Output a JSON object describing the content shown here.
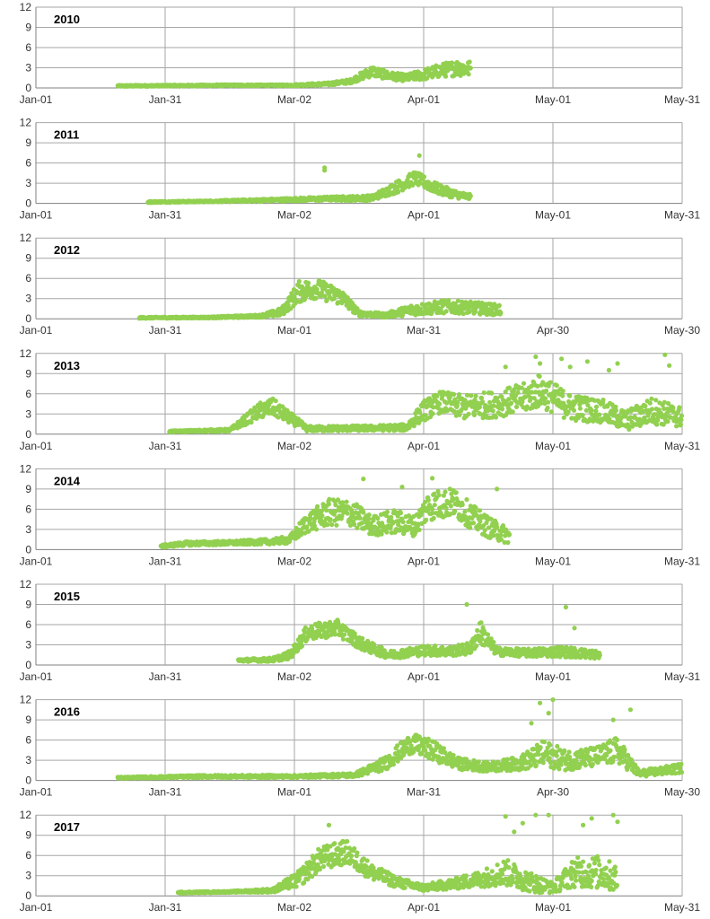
{
  "colors": {
    "series": "#92d050",
    "grid": "#a6a6a6",
    "axis": "#808080",
    "text": "#333333"
  },
  "chart_data": [
    {
      "type": "scatter",
      "title": "2010",
      "ylim": [
        0,
        12
      ],
      "yticks": [
        "0",
        "3",
        "6",
        "9",
        "12"
      ],
      "xlim": [
        "2010-01-01",
        "2010-05-31"
      ],
      "xticks": [
        "Jan-01",
        "Jan-31",
        "Mar-02",
        "Apr-01",
        "May-01",
        "May-31"
      ],
      "series": [
        {
          "x": [
            "2010-01-20",
            "2010-02-01",
            "2010-02-15",
            "2010-03-01",
            "2010-03-10",
            "2010-03-15",
            "2010-03-20",
            "2010-03-24",
            "2010-03-28",
            "2010-04-01",
            "2010-04-05",
            "2010-04-09",
            "2010-04-12"
          ],
          "y": [
            0.3,
            0.35,
            0.4,
            0.4,
            0.6,
            1.0,
            2.5,
            1.8,
            1.5,
            2.0,
            2.6,
            3.0,
            2.8
          ],
          "spread": [
            0.1,
            0.1,
            0.1,
            0.1,
            0.2,
            0.3,
            0.8,
            0.6,
            0.5,
            0.8,
            1.0,
            1.2,
            1.2
          ]
        }
      ]
    },
    {
      "type": "scatter",
      "title": "2011",
      "ylim": [
        0,
        12
      ],
      "yticks": [
        "0",
        "3",
        "6",
        "9",
        "12"
      ],
      "xlim": [
        "2011-01-01",
        "2011-05-31"
      ],
      "xticks": [
        "Jan-01",
        "Jan-31",
        "Mar-02",
        "Apr-01",
        "May-01",
        "May-31"
      ],
      "series": [
        {
          "x": [
            "2011-01-27",
            "2011-02-10",
            "2011-02-25",
            "2011-03-10",
            "2011-03-20",
            "2011-03-26",
            "2011-03-30",
            "2011-04-04",
            "2011-04-08",
            "2011-04-12"
          ],
          "y": [
            0.2,
            0.3,
            0.5,
            0.7,
            0.8,
            2.5,
            3.8,
            2.2,
            1.4,
            0.9
          ],
          "spread": [
            0.1,
            0.1,
            0.2,
            0.3,
            0.4,
            0.9,
            1.0,
            0.8,
            0.6,
            0.4
          ]
        }
      ],
      "outliers": {
        "x": [
          "2011-03-09",
          "2011-03-09",
          "2011-03-31"
        ],
        "y": [
          5.3,
          4.9,
          7.1
        ]
      }
    },
    {
      "type": "scatter",
      "title": "2012",
      "ylim": [
        0,
        12
      ],
      "yticks": [
        "0",
        "3",
        "6",
        "9",
        "12"
      ],
      "xlim": [
        "2012-01-01",
        "2012-05-30"
      ],
      "xticks": [
        "Jan-01",
        "Jan-31",
        "Mar-01",
        "Mar-31",
        "Apr-30",
        "May-30"
      ],
      "series": [
        {
          "x": [
            "2012-01-25",
            "2012-02-10",
            "2012-02-22",
            "2012-02-27",
            "2012-03-02",
            "2012-03-06",
            "2012-03-12",
            "2012-03-16",
            "2012-03-22",
            "2012-03-28",
            "2012-04-05",
            "2012-04-12",
            "2012-04-18"
          ],
          "y": [
            0.15,
            0.2,
            0.4,
            1.0,
            4.0,
            4.5,
            3.2,
            0.8,
            0.5,
            1.3,
            1.8,
            1.6,
            1.3
          ],
          "spread": [
            0.1,
            0.1,
            0.2,
            0.6,
            1.6,
            1.5,
            1.2,
            0.4,
            0.3,
            0.8,
            1.0,
            0.9,
            0.8
          ]
        }
      ]
    },
    {
      "type": "scatter",
      "title": "2013",
      "ylim": [
        0,
        12
      ],
      "yticks": [
        "0",
        "3",
        "6",
        "9",
        "12"
      ],
      "xlim": [
        "2013-01-01",
        "2013-05-31"
      ],
      "xticks": [
        "Jan-01",
        "Jan-31",
        "Mar-02",
        "Apr-01",
        "May-01",
        "May-31"
      ],
      "series": [
        {
          "x": [
            "2013-02-01",
            "2013-02-15",
            "2013-02-22",
            "2013-02-25",
            "2013-03-05",
            "2013-03-20",
            "2013-03-28",
            "2013-04-01",
            "2013-04-05",
            "2013-04-10",
            "2013-04-18",
            "2013-04-25",
            "2013-04-28",
            "2013-05-05",
            "2013-05-12",
            "2013-05-18",
            "2013-05-24",
            "2013-05-31"
          ],
          "y": [
            0.4,
            0.6,
            3.5,
            4.0,
            0.8,
            0.9,
            1.0,
            3.5,
            4.8,
            4.0,
            4.5,
            5.5,
            6.5,
            4.0,
            3.5,
            2.0,
            3.5,
            2.5
          ],
          "spread": [
            0.1,
            0.2,
            1.2,
            1.3,
            0.4,
            0.4,
            0.5,
            1.5,
            1.6,
            1.8,
            2.0,
            2.2,
            2.5,
            2.0,
            1.8,
            1.5,
            2.0,
            1.5
          ]
        }
      ],
      "outliers": {
        "x": [
          "2013-04-27",
          "2013-04-28",
          "2013-05-03",
          "2013-05-05",
          "2013-05-09",
          "2013-05-16",
          "2013-05-27",
          "2013-05-28",
          "2013-04-20",
          "2013-05-14"
        ],
        "y": [
          11.5,
          10.5,
          11.2,
          10.0,
          10.8,
          10.5,
          11.8,
          10.2,
          10.0,
          9.5
        ]
      }
    },
    {
      "type": "scatter",
      "title": "2014",
      "ylim": [
        0,
        12
      ],
      "yticks": [
        "0",
        "3",
        "6",
        "9",
        "12"
      ],
      "xlim": [
        "2014-01-01",
        "2014-05-31"
      ],
      "xticks": [
        "Jan-01",
        "Jan-31",
        "Mar-02",
        "Apr-01",
        "May-01",
        "May-31"
      ],
      "series": [
        {
          "x": [
            "2014-01-30",
            "2014-02-05",
            "2014-02-15",
            "2014-02-25",
            "2014-03-01",
            "2014-03-05",
            "2014-03-10",
            "2014-03-15",
            "2014-03-20",
            "2014-03-25",
            "2014-03-30",
            "2014-04-02",
            "2014-04-08",
            "2014-04-13",
            "2014-04-17",
            "2014-04-21"
          ],
          "y": [
            0.5,
            0.9,
            1.0,
            1.2,
            1.5,
            4.0,
            5.5,
            5.5,
            3.5,
            4.2,
            3.5,
            6.5,
            7.0,
            4.5,
            3.0,
            2.0
          ],
          "spread": [
            0.2,
            0.3,
            0.3,
            0.4,
            0.6,
            1.5,
            2.0,
            2.0,
            1.5,
            1.8,
            1.5,
            2.2,
            2.2,
            1.8,
            1.5,
            1.2
          ]
        }
      ],
      "outliers": {
        "x": [
          "2014-03-18",
          "2014-04-03",
          "2014-04-18",
          "2014-03-27"
        ],
        "y": [
          10.5,
          10.6,
          9.0,
          9.3
        ]
      }
    },
    {
      "type": "scatter",
      "title": "2015",
      "ylim": [
        0,
        12
      ],
      "yticks": [
        "0",
        "3",
        "6",
        "9",
        "12"
      ],
      "xlim": [
        "2015-01-01",
        "2015-05-31"
      ],
      "xticks": [
        "Jan-01",
        "Jan-31",
        "Mar-02",
        "Apr-01",
        "May-01",
        "May-31"
      ],
      "series": [
        {
          "x": [
            "2015-02-17",
            "2015-02-25",
            "2015-03-01",
            "2015-03-05",
            "2015-03-12",
            "2015-03-18",
            "2015-03-24",
            "2015-03-30",
            "2015-04-02",
            "2015-04-07",
            "2015-04-12",
            "2015-04-14",
            "2015-04-18",
            "2015-04-25",
            "2015-05-03",
            "2015-05-12"
          ],
          "y": [
            0.7,
            0.8,
            1.5,
            4.8,
            5.5,
            3.0,
            1.5,
            2.0,
            2.2,
            2.0,
            2.5,
            5.0,
            2.0,
            1.8,
            2.0,
            1.5
          ],
          "spread": [
            0.2,
            0.3,
            0.6,
            1.2,
            1.2,
            0.9,
            0.6,
            0.7,
            0.8,
            0.7,
            0.9,
            1.8,
            0.6,
            0.6,
            0.8,
            0.6
          ]
        }
      ],
      "outliers": {
        "x": [
          "2015-04-11",
          "2015-05-04",
          "2015-05-06"
        ],
        "y": [
          9.0,
          8.6,
          5.5
        ]
      }
    },
    {
      "type": "scatter",
      "title": "2016",
      "ylim": [
        0,
        12
      ],
      "yticks": [
        "0",
        "3",
        "6",
        "9",
        "12"
      ],
      "xlim": [
        "2016-01-01",
        "2016-05-30"
      ],
      "xticks": [
        "Jan-01",
        "Jan-31",
        "Mar-01",
        "Mar-31",
        "Apr-30",
        "May-30"
      ],
      "series": [
        {
          "x": [
            "2016-01-20",
            "2016-02-10",
            "2016-03-01",
            "2016-03-15",
            "2016-03-22",
            "2016-03-28",
            "2016-04-02",
            "2016-04-08",
            "2016-04-15",
            "2016-04-22",
            "2016-04-28",
            "2016-05-03",
            "2016-05-10",
            "2016-05-15",
            "2016-05-20",
            "2016-05-30"
          ],
          "y": [
            0.4,
            0.6,
            0.6,
            0.8,
            2.5,
            5.5,
            4.5,
            2.5,
            2.0,
            2.5,
            4.0,
            3.0,
            3.5,
            4.5,
            1.0,
            1.8
          ],
          "spread": [
            0.1,
            0.2,
            0.2,
            0.3,
            1.0,
            1.5,
            1.5,
            0.9,
            0.7,
            1.0,
            2.0,
            1.5,
            1.5,
            2.0,
            0.5,
            0.7
          ]
        }
      ],
      "outliers": {
        "x": [
          "2016-04-27",
          "2016-04-29",
          "2016-04-30",
          "2016-05-14",
          "2016-05-18",
          "2016-04-25"
        ],
        "y": [
          11.5,
          10.0,
          12.0,
          9.0,
          10.5,
          8.5
        ]
      }
    },
    {
      "type": "scatter",
      "title": "2017",
      "ylim": [
        0,
        12
      ],
      "yticks": [
        "0",
        "3",
        "6",
        "9",
        "12"
      ],
      "xlim": [
        "2017-01-01",
        "2017-05-31"
      ],
      "xticks": [
        "Jan-01",
        "Jan-31",
        "Mar-02",
        "Apr-01",
        "May-01",
        "May-31"
      ],
      "series": [
        {
          "x": [
            "2017-02-03",
            "2017-02-15",
            "2017-02-25",
            "2017-03-03",
            "2017-03-08",
            "2017-03-14",
            "2017-03-20",
            "2017-03-26",
            "2017-04-01",
            "2017-04-08",
            "2017-04-14",
            "2017-04-20",
            "2017-04-26",
            "2017-05-01",
            "2017-05-06",
            "2017-05-12",
            "2017-05-16"
          ],
          "y": [
            0.5,
            0.6,
            0.8,
            2.5,
            5.5,
            6.5,
            3.5,
            2.0,
            1.2,
            1.8,
            2.5,
            3.5,
            2.0,
            1.2,
            3.5,
            3.5,
            2.5
          ],
          "spread": [
            0.1,
            0.1,
            0.3,
            1.2,
            1.8,
            1.8,
            1.2,
            0.8,
            0.5,
            0.8,
            1.2,
            2.0,
            1.5,
            0.8,
            2.2,
            2.5,
            2.0
          ]
        }
      ],
      "outliers": {
        "x": [
          "2017-03-10",
          "2017-04-20",
          "2017-04-24",
          "2017-04-27",
          "2017-04-30",
          "2017-05-10",
          "2017-05-15",
          "2017-05-16",
          "2017-05-08",
          "2017-04-22"
        ],
        "y": [
          10.5,
          11.8,
          10.8,
          12.0,
          12.0,
          11.5,
          12.0,
          11.0,
          10.5,
          9.5
        ]
      }
    }
  ]
}
